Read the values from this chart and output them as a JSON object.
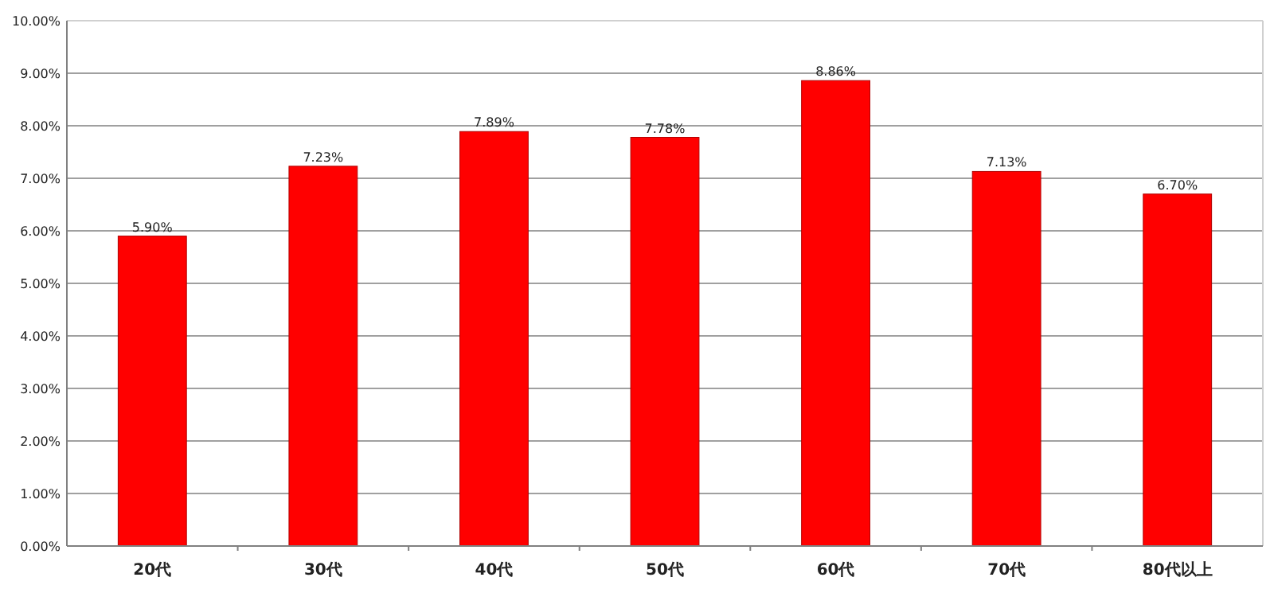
{
  "chart_data": {
    "type": "bar",
    "categories": [
      "20代",
      "30代",
      "40代",
      "50代",
      "60代",
      "70代",
      "80代以上"
    ],
    "series": [
      {
        "color": "#ff0000",
        "values": [
          5.9,
          7.23,
          7.89,
          7.78,
          8.86,
          7.13,
          6.7
        ],
        "value_labels": [
          "5.90%",
          "7.23%",
          "7.89%",
          "7.78%",
          "8.86%",
          "7.13%",
          "6.70%"
        ]
      }
    ],
    "ylim": [
      0,
      10
    ],
    "yticks": [
      {
        "value": 0,
        "label": "0.00%"
      },
      {
        "value": 1,
        "label": "1.00%"
      },
      {
        "value": 2,
        "label": "2.00%"
      },
      {
        "value": 3,
        "label": "3.00%"
      },
      {
        "value": 4,
        "label": "4.00%"
      },
      {
        "value": 5,
        "label": "5.00%"
      },
      {
        "value": 6,
        "label": "6.00%"
      },
      {
        "value": 7,
        "label": "7.00%"
      },
      {
        "value": 8,
        "label": "8.00%"
      },
      {
        "value": 9,
        "label": "9.00%"
      },
      {
        "value": 10,
        "label": "10.00%"
      }
    ],
    "grid": "y"
  }
}
